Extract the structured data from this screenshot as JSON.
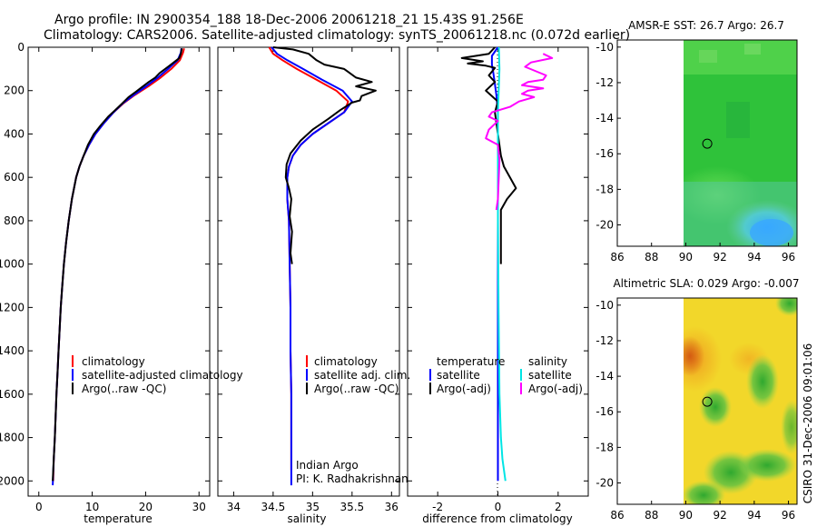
{
  "header": {
    "line1": "Argo profile: IN 2900354_188 18-Dec-2006 20061218_21 15.43S 91.256E",
    "line2": "Climatology: CARS2006. Satellite-adjusted climatology: synTS_20061218.nc (0.072d earlier)"
  },
  "colors": {
    "climatology": "#ff0000",
    "satellite": "#0000ff",
    "argo": "#000000",
    "salinity_sat": "#00e5e5",
    "salinity_argo": "#ff00ff"
  },
  "footer": {
    "credit": "CSIRO 31-Dec-2006 09:01:06"
  },
  "chart_data": [
    {
      "id": "temperature",
      "type": "line",
      "xlabel": "temperature",
      "ylabel": "",
      "xlim": [
        -2,
        32
      ],
      "ylim": [
        2070,
        0
      ],
      "xticks": [
        0,
        10,
        20,
        30
      ],
      "yticks": [
        0,
        200,
        400,
        600,
        800,
        1000,
        1200,
        1400,
        1600,
        1800,
        2000
      ],
      "legend": [
        "climatology",
        "satellite-adjusted climatology",
        "Argo(..raw -QC)"
      ],
      "legend_position": "lower-middle",
      "series": [
        {
          "name": "climatology",
          "color": "#ff0000",
          "points": [
            [
              27.2,
              5
            ],
            [
              27.0,
              25
            ],
            [
              26.4,
              60
            ],
            [
              24.8,
              100
            ],
            [
              22.8,
              140
            ],
            [
              20.5,
              180
            ],
            [
              18.0,
              220
            ],
            [
              15.8,
              260
            ],
            [
              14.0,
              300
            ],
            [
              12.2,
              350
            ],
            [
              10.6,
              400
            ],
            [
              9.4,
              450
            ],
            [
              8.4,
              500
            ],
            [
              7.6,
              550
            ],
            [
              7.0,
              600
            ],
            [
              6.2,
              700
            ],
            [
              5.6,
              800
            ],
            [
              5.1,
              900
            ],
            [
              4.7,
              1000
            ],
            [
              4.4,
              1100
            ],
            [
              4.1,
              1200
            ],
            [
              3.9,
              1300
            ],
            [
              3.7,
              1400
            ],
            [
              3.5,
              1500
            ],
            [
              3.3,
              1600
            ],
            [
              3.15,
              1700
            ],
            [
              3.0,
              1800
            ],
            [
              2.8,
              1900
            ],
            [
              2.7,
              2000
            ]
          ]
        },
        {
          "name": "satellite-adjusted climatology",
          "color": "#0000ff",
          "points": [
            [
              26.7,
              5
            ],
            [
              26.6,
              25
            ],
            [
              26.0,
              60
            ],
            [
              24.2,
              100
            ],
            [
              22.3,
              140
            ],
            [
              20.1,
              180
            ],
            [
              17.8,
              220
            ],
            [
              15.7,
              260
            ],
            [
              14.0,
              300
            ],
            [
              12.2,
              350
            ],
            [
              10.6,
              400
            ],
            [
              9.4,
              450
            ],
            [
              8.4,
              500
            ],
            [
              7.6,
              550
            ],
            [
              7.0,
              600
            ],
            [
              6.2,
              700
            ],
            [
              5.6,
              800
            ],
            [
              5.1,
              900
            ],
            [
              4.7,
              1000
            ],
            [
              4.4,
              1100
            ],
            [
              4.1,
              1200
            ],
            [
              3.9,
              1300
            ],
            [
              3.7,
              1400
            ],
            [
              3.5,
              1500
            ],
            [
              3.3,
              1600
            ],
            [
              3.15,
              1700
            ],
            [
              3.0,
              1800
            ],
            [
              2.8,
              1900
            ],
            [
              2.6,
              2020
            ]
          ]
        },
        {
          "name": "Argo(..raw -QC)",
          "color": "#000000",
          "points": [
            [
              26.8,
              5
            ],
            [
              26.6,
              30
            ],
            [
              26.3,
              50
            ],
            [
              25.0,
              75
            ],
            [
              24.2,
              90
            ],
            [
              22.6,
              120
            ],
            [
              21.8,
              140
            ],
            [
              20.6,
              160
            ],
            [
              19.0,
              190
            ],
            [
              18.2,
              205
            ],
            [
              16.8,
              230
            ],
            [
              15.6,
              260
            ],
            [
              14.3,
              290
            ],
            [
              13.0,
              320
            ],
            [
              11.6,
              360
            ],
            [
              10.3,
              400
            ],
            [
              9.2,
              450
            ],
            [
              8.4,
              500
            ],
            [
              7.6,
              550
            ],
            [
              7.0,
              600
            ],
            [
              6.2,
              700
            ],
            [
              5.6,
              800
            ],
            [
              5.1,
              900
            ],
            [
              4.7,
              1000
            ],
            [
              4.4,
              1100
            ],
            [
              4.1,
              1200
            ],
            [
              3.9,
              1300
            ],
            [
              3.7,
              1400
            ],
            [
              3.5,
              1500
            ],
            [
              3.3,
              1600
            ],
            [
              3.15,
              1700
            ],
            [
              3.0,
              1800
            ],
            [
              2.8,
              1900
            ],
            [
              2.6,
              2000
            ]
          ]
        }
      ]
    },
    {
      "id": "salinity",
      "type": "line",
      "xlabel": "salinity",
      "ylabel": "",
      "xlim": [
        33.8,
        36.1
      ],
      "ylim": [
        2070,
        0
      ],
      "xticks": [
        34,
        34.5,
        35,
        35.5,
        36
      ],
      "xticklabels": [
        "34",
        "34.5",
        "35",
        "35.5",
        "36"
      ],
      "yticks": [
        0,
        200,
        400,
        600,
        800,
        1000,
        1200,
        1400,
        1600,
        1800,
        2000
      ],
      "legend": [
        "climatology",
        "satellite adj. clim.",
        "Argo(..raw -QC)"
      ],
      "legend_position": "lower-middle",
      "annotation": [
        "Indian Argo",
        "PI: K. Radhakrishnan"
      ],
      "series": [
        {
          "name": "climatology",
          "color": "#ff0000",
          "points": [
            [
              34.45,
              0
            ],
            [
              34.5,
              30
            ],
            [
              34.62,
              60
            ],
            [
              34.8,
              100
            ],
            [
              35.05,
              150
            ],
            [
              35.3,
              200
            ],
            [
              35.45,
              250
            ],
            [
              35.4,
              300
            ],
            [
              35.2,
              350
            ],
            [
              35.0,
              400
            ],
            [
              34.85,
              450
            ],
            [
              34.75,
              500
            ],
            [
              34.7,
              550
            ],
            [
              34.68,
              600
            ],
            [
              34.68,
              700
            ],
            [
              34.7,
              800
            ],
            [
              34.71,
              1000
            ],
            [
              34.72,
              1200
            ],
            [
              34.72,
              1400
            ],
            [
              34.73,
              1600
            ],
            [
              34.73,
              1800
            ],
            [
              34.73,
              1950
            ]
          ]
        },
        {
          "name": "satellite adj. clim.",
          "color": "#0000ff",
          "points": [
            [
              34.48,
              0
            ],
            [
              34.55,
              30
            ],
            [
              34.68,
              60
            ],
            [
              34.88,
              100
            ],
            [
              35.12,
              150
            ],
            [
              35.38,
              200
            ],
            [
              35.5,
              250
            ],
            [
              35.4,
              300
            ],
            [
              35.2,
              350
            ],
            [
              35.0,
              400
            ],
            [
              34.85,
              450
            ],
            [
              34.75,
              500
            ],
            [
              34.7,
              550
            ],
            [
              34.68,
              600
            ],
            [
              34.68,
              700
            ],
            [
              34.7,
              800
            ],
            [
              34.71,
              1000
            ],
            [
              34.72,
              1200
            ],
            [
              34.72,
              1400
            ],
            [
              34.73,
              1600
            ],
            [
              34.73,
              1800
            ],
            [
              34.73,
              2020
            ]
          ]
        },
        {
          "name": "Argo(..raw -QC)",
          "color": "#000000",
          "points": [
            [
              34.5,
              0
            ],
            [
              34.75,
              10
            ],
            [
              34.95,
              30
            ],
            [
              35.05,
              60
            ],
            [
              35.15,
              80
            ],
            [
              35.4,
              100
            ],
            [
              35.55,
              140
            ],
            [
              35.75,
              160
            ],
            [
              35.55,
              180
            ],
            [
              35.8,
              200
            ],
            [
              35.62,
              225
            ],
            [
              35.6,
              245
            ],
            [
              35.5,
              255
            ],
            [
              35.35,
              290
            ],
            [
              35.2,
              330
            ],
            [
              35.0,
              380
            ],
            [
              34.85,
              430
            ],
            [
              34.72,
              490
            ],
            [
              34.67,
              540
            ],
            [
              34.66,
              600
            ],
            [
              34.7,
              650
            ],
            [
              34.73,
              700
            ],
            [
              34.71,
              780
            ],
            [
              34.74,
              850
            ],
            [
              34.72,
              950
            ],
            [
              34.74,
              1000
            ]
          ]
        }
      ]
    },
    {
      "id": "difference",
      "type": "line",
      "xlabel": "difference from climatology",
      "ylabel": "",
      "xlim": [
        -3,
        3
      ],
      "ylim": [
        2070,
        0
      ],
      "xticks": [
        -2,
        0,
        2
      ],
      "yticks": [
        0,
        200,
        400,
        600,
        800,
        1000,
        1200,
        1400,
        1600,
        1800,
        2000
      ],
      "legend": [
        "temperature",
        "satellite",
        "Argo(-adj)",
        "salinity",
        "satellite",
        "Argo(-adj)"
      ],
      "legend_position": "lower-middle",
      "series": [
        {
          "name": "temperature satellite",
          "color": "#0000ff",
          "points": [
            [
              0.0,
              0
            ],
            [
              -0.2,
              40
            ],
            [
              -0.2,
              80
            ],
            [
              -0.15,
              120
            ],
            [
              -0.1,
              170
            ],
            [
              -0.05,
              220
            ],
            [
              0,
              300
            ],
            [
              0,
              500
            ],
            [
              0,
              1000
            ],
            [
              0,
              1500
            ],
            [
              0,
              2000
            ]
          ]
        },
        {
          "name": "temperature Argo(-adj)",
          "color": "#000000",
          "points": [
            [
              -0.1,
              0
            ],
            [
              -0.3,
              30
            ],
            [
              -1.2,
              50
            ],
            [
              -0.5,
              65
            ],
            [
              -1.0,
              75
            ],
            [
              -0.4,
              85
            ],
            [
              -0.1,
              95
            ],
            [
              -0.3,
              130
            ],
            [
              -0.1,
              160
            ],
            [
              -0.4,
              200
            ],
            [
              0.0,
              250
            ],
            [
              -0.1,
              300
            ],
            [
              0,
              400
            ],
            [
              0.1,
              500
            ],
            [
              0.2,
              550
            ],
            [
              0.4,
              600
            ],
            [
              0.6,
              650
            ],
            [
              0.3,
              700
            ],
            [
              0.1,
              750
            ],
            [
              0.1,
              850
            ],
            [
              0.1,
              1000
            ]
          ]
        },
        {
          "name": "salinity satellite",
          "color": "#00e5e5",
          "points": [
            [
              0.03,
              0
            ],
            [
              0.05,
              100
            ],
            [
              0.0,
              300
            ],
            [
              0.0,
              800
            ],
            [
              0.02,
              1200
            ],
            [
              0.05,
              1600
            ],
            [
              0.1,
              1800
            ],
            [
              0.15,
              1900
            ],
            [
              0.25,
              2000
            ]
          ]
        },
        {
          "name": "salinity Argo(-adj)",
          "color": "#ff00ff",
          "points": [
            [
              1.5,
              30
            ],
            [
              1.8,
              50
            ],
            [
              1.1,
              70
            ],
            [
              0.9,
              90
            ],
            [
              1.6,
              130
            ],
            [
              1.5,
              150
            ],
            [
              1.0,
              160
            ],
            [
              0.8,
              175
            ],
            [
              1.5,
              190
            ],
            [
              1.0,
              200
            ],
            [
              0.8,
              215
            ],
            [
              1.2,
              230
            ],
            [
              0.7,
              250
            ],
            [
              0.4,
              275
            ],
            [
              -0.2,
              300
            ],
            [
              -0.3,
              320
            ],
            [
              0.0,
              340
            ],
            [
              -0.3,
              380
            ],
            [
              -0.4,
              420
            ],
            [
              0.0,
              450
            ],
            [
              0.05,
              520
            ],
            [
              0.0,
              700
            ],
            [
              -0.05,
              750
            ]
          ]
        }
      ]
    },
    {
      "id": "sst-map",
      "type": "heatmap",
      "title": "AMSR-E SST: 26.7 Argo: 26.7",
      "xlim": [
        86,
        96.5
      ],
      "ylim": [
        -21.2,
        -9.6
      ],
      "xticks": [
        86,
        88,
        90,
        92,
        94,
        96
      ],
      "yticks": [
        -10,
        -12,
        -14,
        -16,
        -18,
        -20
      ],
      "marker": {
        "lon": 91.256,
        "lat": -15.43
      }
    },
    {
      "id": "sla-map",
      "type": "heatmap",
      "title": "Altimetric SLA: 0.029 Argo: -0.007",
      "xlim": [
        86,
        96.5
      ],
      "ylim": [
        -21.2,
        -9.6
      ],
      "xticks": [
        86,
        88,
        90,
        92,
        94,
        96
      ],
      "yticks": [
        -10,
        -12,
        -14,
        -16,
        -18,
        -20
      ],
      "marker": {
        "lon": 91.256,
        "lat": -15.43
      }
    }
  ]
}
